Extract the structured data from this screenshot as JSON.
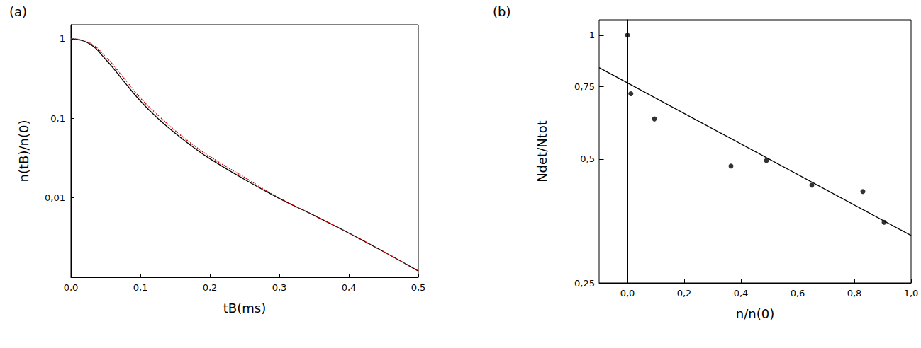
{
  "chart_data": [
    {
      "type": "line",
      "title": "(a)",
      "x_label": "tB(ms)",
      "y_label": "n(tB)/n(0)",
      "log": "y",
      "grid": false,
      "x": [
        0,
        0.025,
        0.05,
        0.075,
        0.1,
        0.125,
        0.15,
        0.175,
        0.2,
        0.25,
        0.3,
        0.35,
        0.4,
        0.45,
        0.5
      ],
      "series": [
        {
          "color": "#000000",
          "line_style": "solid",
          "values": [
            1,
            0.88,
            0.55,
            0.3,
            0.165,
            0.1,
            0.065,
            0.044,
            0.031,
            0.017,
            0.0098,
            0.006,
            0.0036,
            0.0021,
            0.0012
          ]
        },
        {
          "color": "#cc0000",
          "line_style": "dotted",
          "values": [
            1,
            0.9,
            0.59,
            0.33,
            0.18,
            0.11,
            0.07,
            0.047,
            0.033,
            0.018,
            0.0099,
            0.006,
            0.0036,
            0.0021,
            0.0012
          ]
        }
      ],
      "xlim": [
        0,
        0.5
      ],
      "xticks": [
        {
          "value": 0,
          "label": "0,0"
        },
        {
          "value": 0.1,
          "label": "0,1"
        },
        {
          "value": 0.2,
          "label": "0,2"
        },
        {
          "value": 0.3,
          "label": "0,3"
        },
        {
          "value": 0.4,
          "label": "0,4"
        },
        {
          "value": 0.5,
          "label": "0,5"
        }
      ],
      "ylim": [
        0.001,
        1.5
      ],
      "yticks": [
        {
          "value": 0.01,
          "label": "0,01"
        },
        {
          "value": 0.1,
          "label": "0,1"
        },
        1
      ]
    },
    {
      "type": "scatter",
      "title": "(b)",
      "x_label": "n/n(0)",
      "y_label": "Ndet/Ntot",
      "log": "y",
      "grid": false,
      "series": [
        {
          "type": "scatter",
          "color": "#000000",
          "marker": "circle",
          "x": [
            0,
            0.012,
            0.095,
            0.365,
            0.49,
            0.65,
            0.83,
            0.905
          ],
          "values": [
            1,
            0.721,
            0.626,
            0.481,
            0.496,
            0.432,
            0.417,
            0.351
          ]
        },
        {
          "type": "line",
          "color": "#000000",
          "line_style": "solid",
          "x": [
            -0.1,
            1.0
          ],
          "values": [
            0.834,
            0.326
          ]
        }
      ],
      "xlim": [
        -0.1,
        1.0
      ],
      "xticks": [
        {
          "value": 0,
          "label": "0,0"
        },
        {
          "value": 0.2,
          "label": "0,2"
        },
        {
          "value": 0.4,
          "label": "0,4"
        },
        {
          "value": 0.6,
          "label": "0,6"
        },
        {
          "value": 0.8,
          "label": "0,8"
        },
        {
          "value": 1.0,
          "label": "1,0"
        }
      ],
      "ylim": [
        0.25,
        1.09
      ],
      "yticks": [
        {
          "value": 0.25,
          "label": "0,25"
        },
        {
          "value": 0.5,
          "label": "0,5"
        },
        {
          "value": 0.75,
          "label": "0,75"
        },
        1
      ]
    }
  ]
}
